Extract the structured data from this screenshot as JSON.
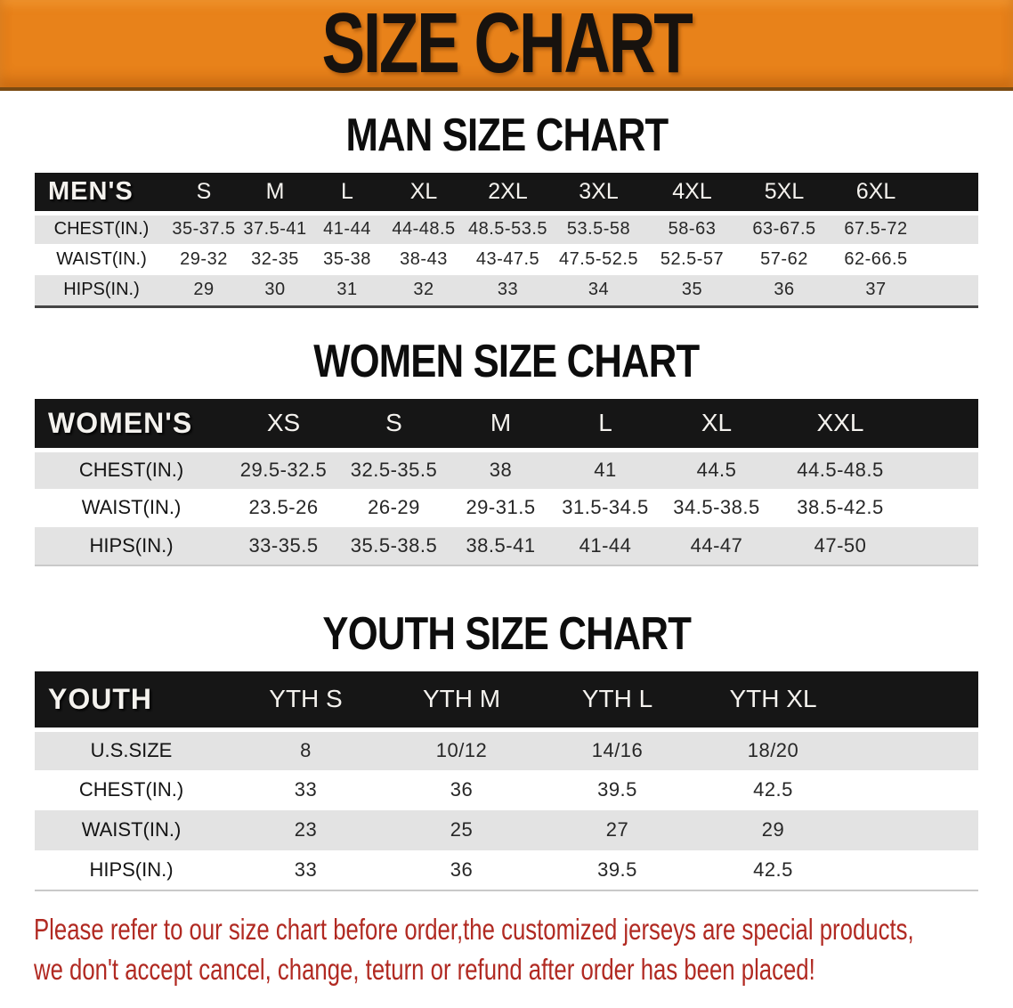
{
  "banner": {
    "title": "SIZE CHART",
    "bg_color": "#e8821a"
  },
  "colors": {
    "banner_bg": "#e8821a",
    "table_header_bar": "#161616",
    "row_stripe_gray": "#e3e3e3",
    "disclaimer_red": "#b12a22"
  },
  "men": {
    "heading": "MAN SIZE CHART",
    "label": "MEN'S",
    "sizes": [
      "S",
      "M",
      "L",
      "XL",
      "2XL",
      "3XL",
      "4XL",
      "5XL",
      "6XL"
    ],
    "rows": [
      {
        "label": "CHEST(IN.)",
        "values": [
          "35-37.5",
          "37.5-41",
          "41-44",
          "44-48.5",
          "48.5-53.5",
          "53.5-58",
          "58-63",
          "63-67.5",
          "67.5-72"
        ]
      },
      {
        "label": "WAIST(IN.)",
        "values": [
          "29-32",
          "32-35",
          "35-38",
          "38-43",
          "43-47.5",
          "47.5-52.5",
          "52.5-57",
          "57-62",
          "62-66.5"
        ]
      },
      {
        "label": "HIPS(IN.)",
        "values": [
          "29",
          "30",
          "31",
          "32",
          "33",
          "34",
          "35",
          "36",
          "37"
        ]
      }
    ]
  },
  "women": {
    "heading": "WOMEN SIZE CHART",
    "label": "WOMEN'S",
    "sizes": [
      "XS",
      "S",
      "M",
      "L",
      "XL",
      "XXL"
    ],
    "rows": [
      {
        "label": "CHEST(IN.)",
        "values": [
          "29.5-32.5",
          "32.5-35.5",
          "38",
          "41",
          "44.5",
          "44.5-48.5"
        ]
      },
      {
        "label": "WAIST(IN.)",
        "values": [
          "23.5-26",
          "26-29",
          "29-31.5",
          "31.5-34.5",
          "34.5-38.5",
          "38.5-42.5"
        ]
      },
      {
        "label": "HIPS(IN.)",
        "values": [
          "33-35.5",
          "35.5-38.5",
          "38.5-41",
          "41-44",
          "44-47",
          "47-50"
        ]
      }
    ]
  },
  "youth": {
    "heading": "YOUTH SIZE CHART",
    "label": "YOUTH",
    "sizes": [
      "YTH S",
      "YTH M",
      "YTH L",
      "YTH XL"
    ],
    "rows": [
      {
        "label": "U.S.SIZE",
        "values": [
          "8",
          "10/12",
          "14/16",
          "18/20"
        ]
      },
      {
        "label": "CHEST(IN.)",
        "values": [
          "33",
          "36",
          "39.5",
          "42.5"
        ]
      },
      {
        "label": "WAIST(IN.)",
        "values": [
          "23",
          "25",
          "27",
          "29"
        ]
      },
      {
        "label": "HIPS(IN.)",
        "values": [
          "33",
          "36",
          "39.5",
          "42.5"
        ]
      }
    ]
  },
  "disclaimer": {
    "line1": "Please refer to our size chart before order,the customized jerseys are special products,",
    "line2": "we don't accept cancel, change, teturn or refund after order has been placed!"
  }
}
